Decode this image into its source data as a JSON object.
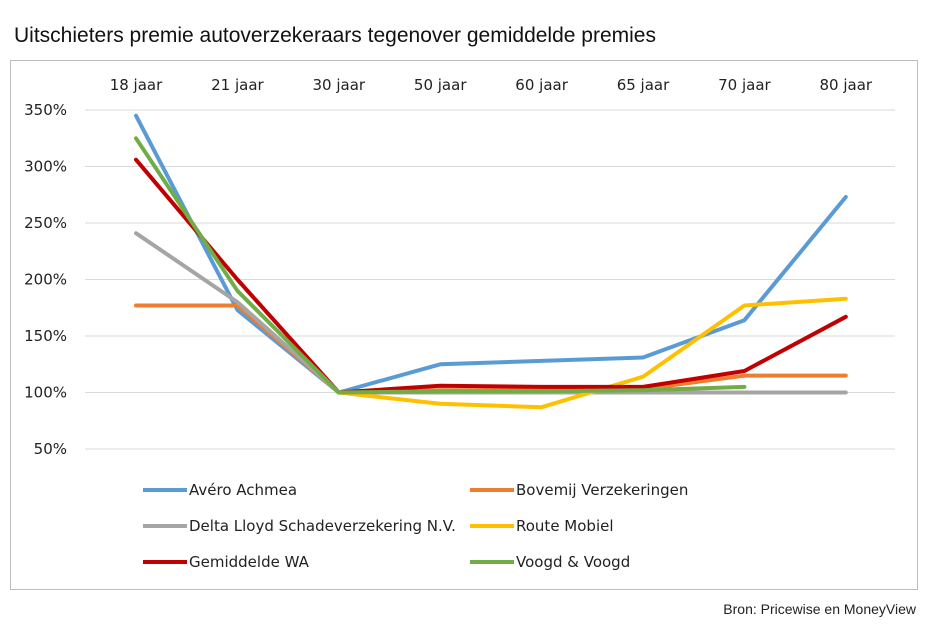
{
  "title": "Uitschieters premie autoverzekeraars tegenover gemiddelde premies",
  "source": "Bron: Pricewise en MoneyView",
  "chart_data": {
    "type": "line",
    "title": "Uitschieters premie autoverzekeraars tegenover gemiddelde premies",
    "categories": [
      "18 jaar",
      "21 jaar",
      "30 jaar",
      "50 jaar",
      "60 jaar",
      "65 jaar",
      "70 jaar",
      "80 jaar"
    ],
    "x_axis_position": "top",
    "yticks": [
      "50%",
      "100%",
      "150%",
      "200%",
      "250%",
      "300%",
      "350%"
    ],
    "ylim": [
      50,
      350
    ],
    "ylabel": "",
    "xlabel": "",
    "grid": true,
    "legend_position": "bottom",
    "series": [
      {
        "name": "Avéro Achmea",
        "color": "#5b9bd5",
        "values": [
          345,
          173,
          100,
          125,
          128,
          131,
          164,
          273
        ]
      },
      {
        "name": "Bovemij Verzekeringen",
        "color": "#ed7d31",
        "values": [
          177,
          177,
          100,
          102,
          102,
          103,
          115,
          115
        ]
      },
      {
        "name": "Delta Lloyd Schadeverzekering N.V.",
        "color": "#a5a5a5",
        "values": [
          241,
          180,
          100,
          100,
          100,
          100,
          100,
          100
        ]
      },
      {
        "name": "Route Mobiel",
        "color": "#ffc000",
        "values": [
          null,
          null,
          100,
          90,
          87,
          114,
          177,
          183
        ]
      },
      {
        "name": "Gemiddelde WA",
        "color": "#c00000",
        "values": [
          306,
          200,
          100,
          106,
          105,
          105,
          119,
          167
        ]
      },
      {
        "name": "Voogd & Voogd",
        "color": "#70ad47",
        "values": [
          325,
          190,
          100,
          101,
          101,
          102,
          105,
          null
        ]
      }
    ]
  }
}
